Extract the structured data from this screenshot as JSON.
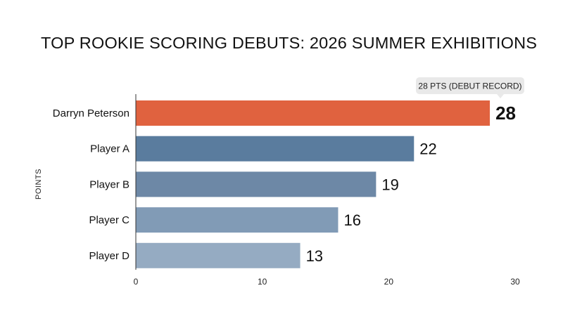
{
  "chart_data": {
    "type": "bar",
    "orientation": "horizontal",
    "title": "TOP ROOKIE SCORING DEBUTS: 2026 SUMMER EXHIBITIONS",
    "xlabel": "",
    "ylabel": "POINTS",
    "categories": [
      "Darryn Peterson",
      "Player A",
      "Player B",
      "Player C",
      "Player D"
    ],
    "values": [
      28,
      22,
      19,
      16,
      13
    ],
    "value_labels": [
      "28",
      "22",
      "19",
      "16",
      "13"
    ],
    "xlim": [
      0,
      30
    ],
    "xticks": [
      0,
      10,
      20,
      30
    ],
    "xtick_labels": [
      "0",
      "10",
      "20",
      "30"
    ],
    "grid": false,
    "highlight_index": 0,
    "annotation": {
      "text": "28 PTS (DEBUT RECORD)",
      "target_index": 0
    },
    "colors": {
      "highlight": "#E0623F",
      "bars": [
        "#5A7C9E",
        "#6D88A6",
        "#819BB6",
        "#95ABC2"
      ],
      "axis": "#333333",
      "annotation_bg": "#E9E9E9"
    }
  }
}
